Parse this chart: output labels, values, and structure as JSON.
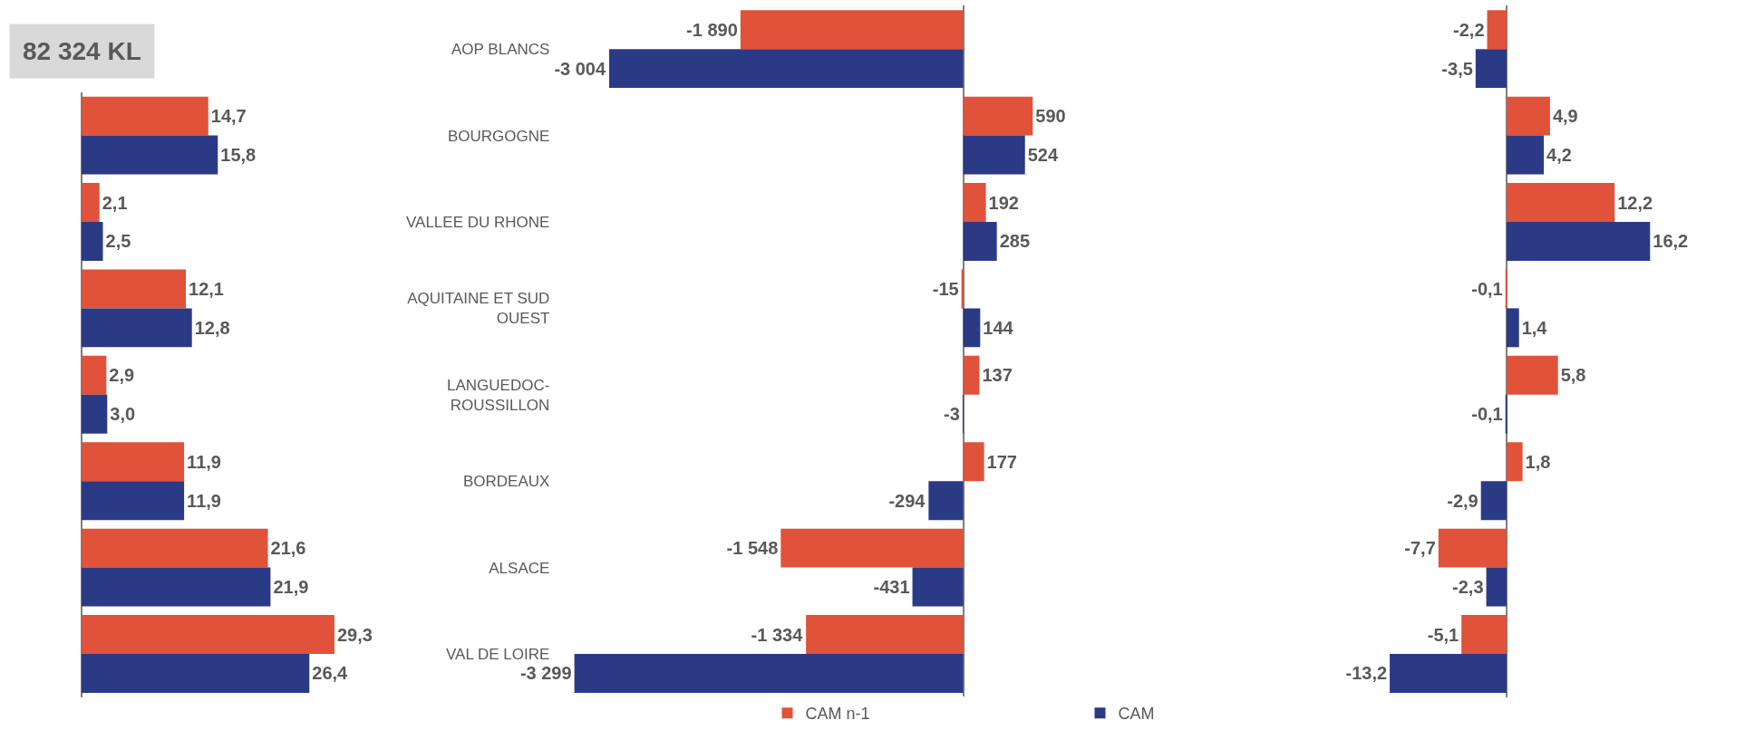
{
  "chart_data": [
    {
      "type": "bar",
      "orientation": "horizontal",
      "title": "82 324 KL",
      "categories": [
        null,
        null,
        null,
        null,
        null,
        null,
        null
      ],
      "tick_labels": false,
      "data_labels": true,
      "series": [
        {
          "color": "#e0523a",
          "values": [
            14.7,
            2.1,
            12.1,
            2.9,
            11.9,
            21.6,
            29.3
          ],
          "value_labels": [
            "14,7",
            "2,1",
            "12,1",
            "2,9",
            "11,9",
            "21,6",
            "29,3"
          ]
        },
        {
          "color": "#2b3a85",
          "values": [
            15.8,
            2.5,
            12.8,
            3.0,
            11.9,
            21.9,
            26.4
          ],
          "value_labels": [
            "15,8",
            "2,5",
            "12,8",
            "3,0",
            "11,9",
            "21,9",
            "26,4"
          ]
        }
      ]
    },
    {
      "type": "bar",
      "orientation": "horizontal",
      "categories": [
        "AOP BLANCS",
        "BOURGOGNE",
        "VALLEE DU RHONE",
        "AQUITAINE ET SUD OUEST",
        "LANGUEDOC-ROUSSILLON",
        "BORDEAUX",
        "ALSACE",
        "VAL DE LOIRE"
      ],
      "tick_labels": "y",
      "data_labels": true,
      "legend": "bottom",
      "series": [
        {
          "name": "CAM n-1",
          "color": "#e0523a",
          "values": [
            -1890,
            590,
            192,
            -15,
            137,
            177,
            -1548,
            -1334
          ],
          "value_labels": [
            "-1 890",
            "590",
            "192",
            "-15",
            "137",
            "177",
            "-1 548",
            "-1 334"
          ]
        },
        {
          "name": "CAM",
          "color": "#2b3a85",
          "values": [
            -3004,
            524,
            285,
            144,
            -3,
            -294,
            -431,
            -3299
          ],
          "value_labels": [
            "-3 004",
            "524",
            "285",
            "144",
            "-3",
            "-294",
            "-431",
            "-3 299"
          ]
        }
      ]
    },
    {
      "type": "bar",
      "orientation": "horizontal",
      "categories": [
        null,
        null,
        null,
        null,
        null,
        null,
        null,
        null
      ],
      "tick_labels": false,
      "data_labels": true,
      "series": [
        {
          "color": "#e0523a",
          "values": [
            -2.2,
            4.9,
            12.2,
            -0.1,
            5.8,
            1.8,
            -7.7,
            -5.1
          ],
          "value_labels": [
            "-2,2",
            "4,9",
            "12,2",
            "-0,1",
            "5,8",
            "1,8",
            "-7,7",
            "-5,1"
          ]
        },
        {
          "color": "#2b3a85",
          "values": [
            -3.5,
            4.2,
            16.2,
            1.4,
            -0.1,
            -2.9,
            -2.3,
            -13.2
          ],
          "value_labels": [
            "-3,5",
            "4,2",
            "16,2",
            "1,4",
            "-0,1",
            "-2,9",
            "-2,3",
            "-13,2"
          ]
        }
      ]
    }
  ]
}
